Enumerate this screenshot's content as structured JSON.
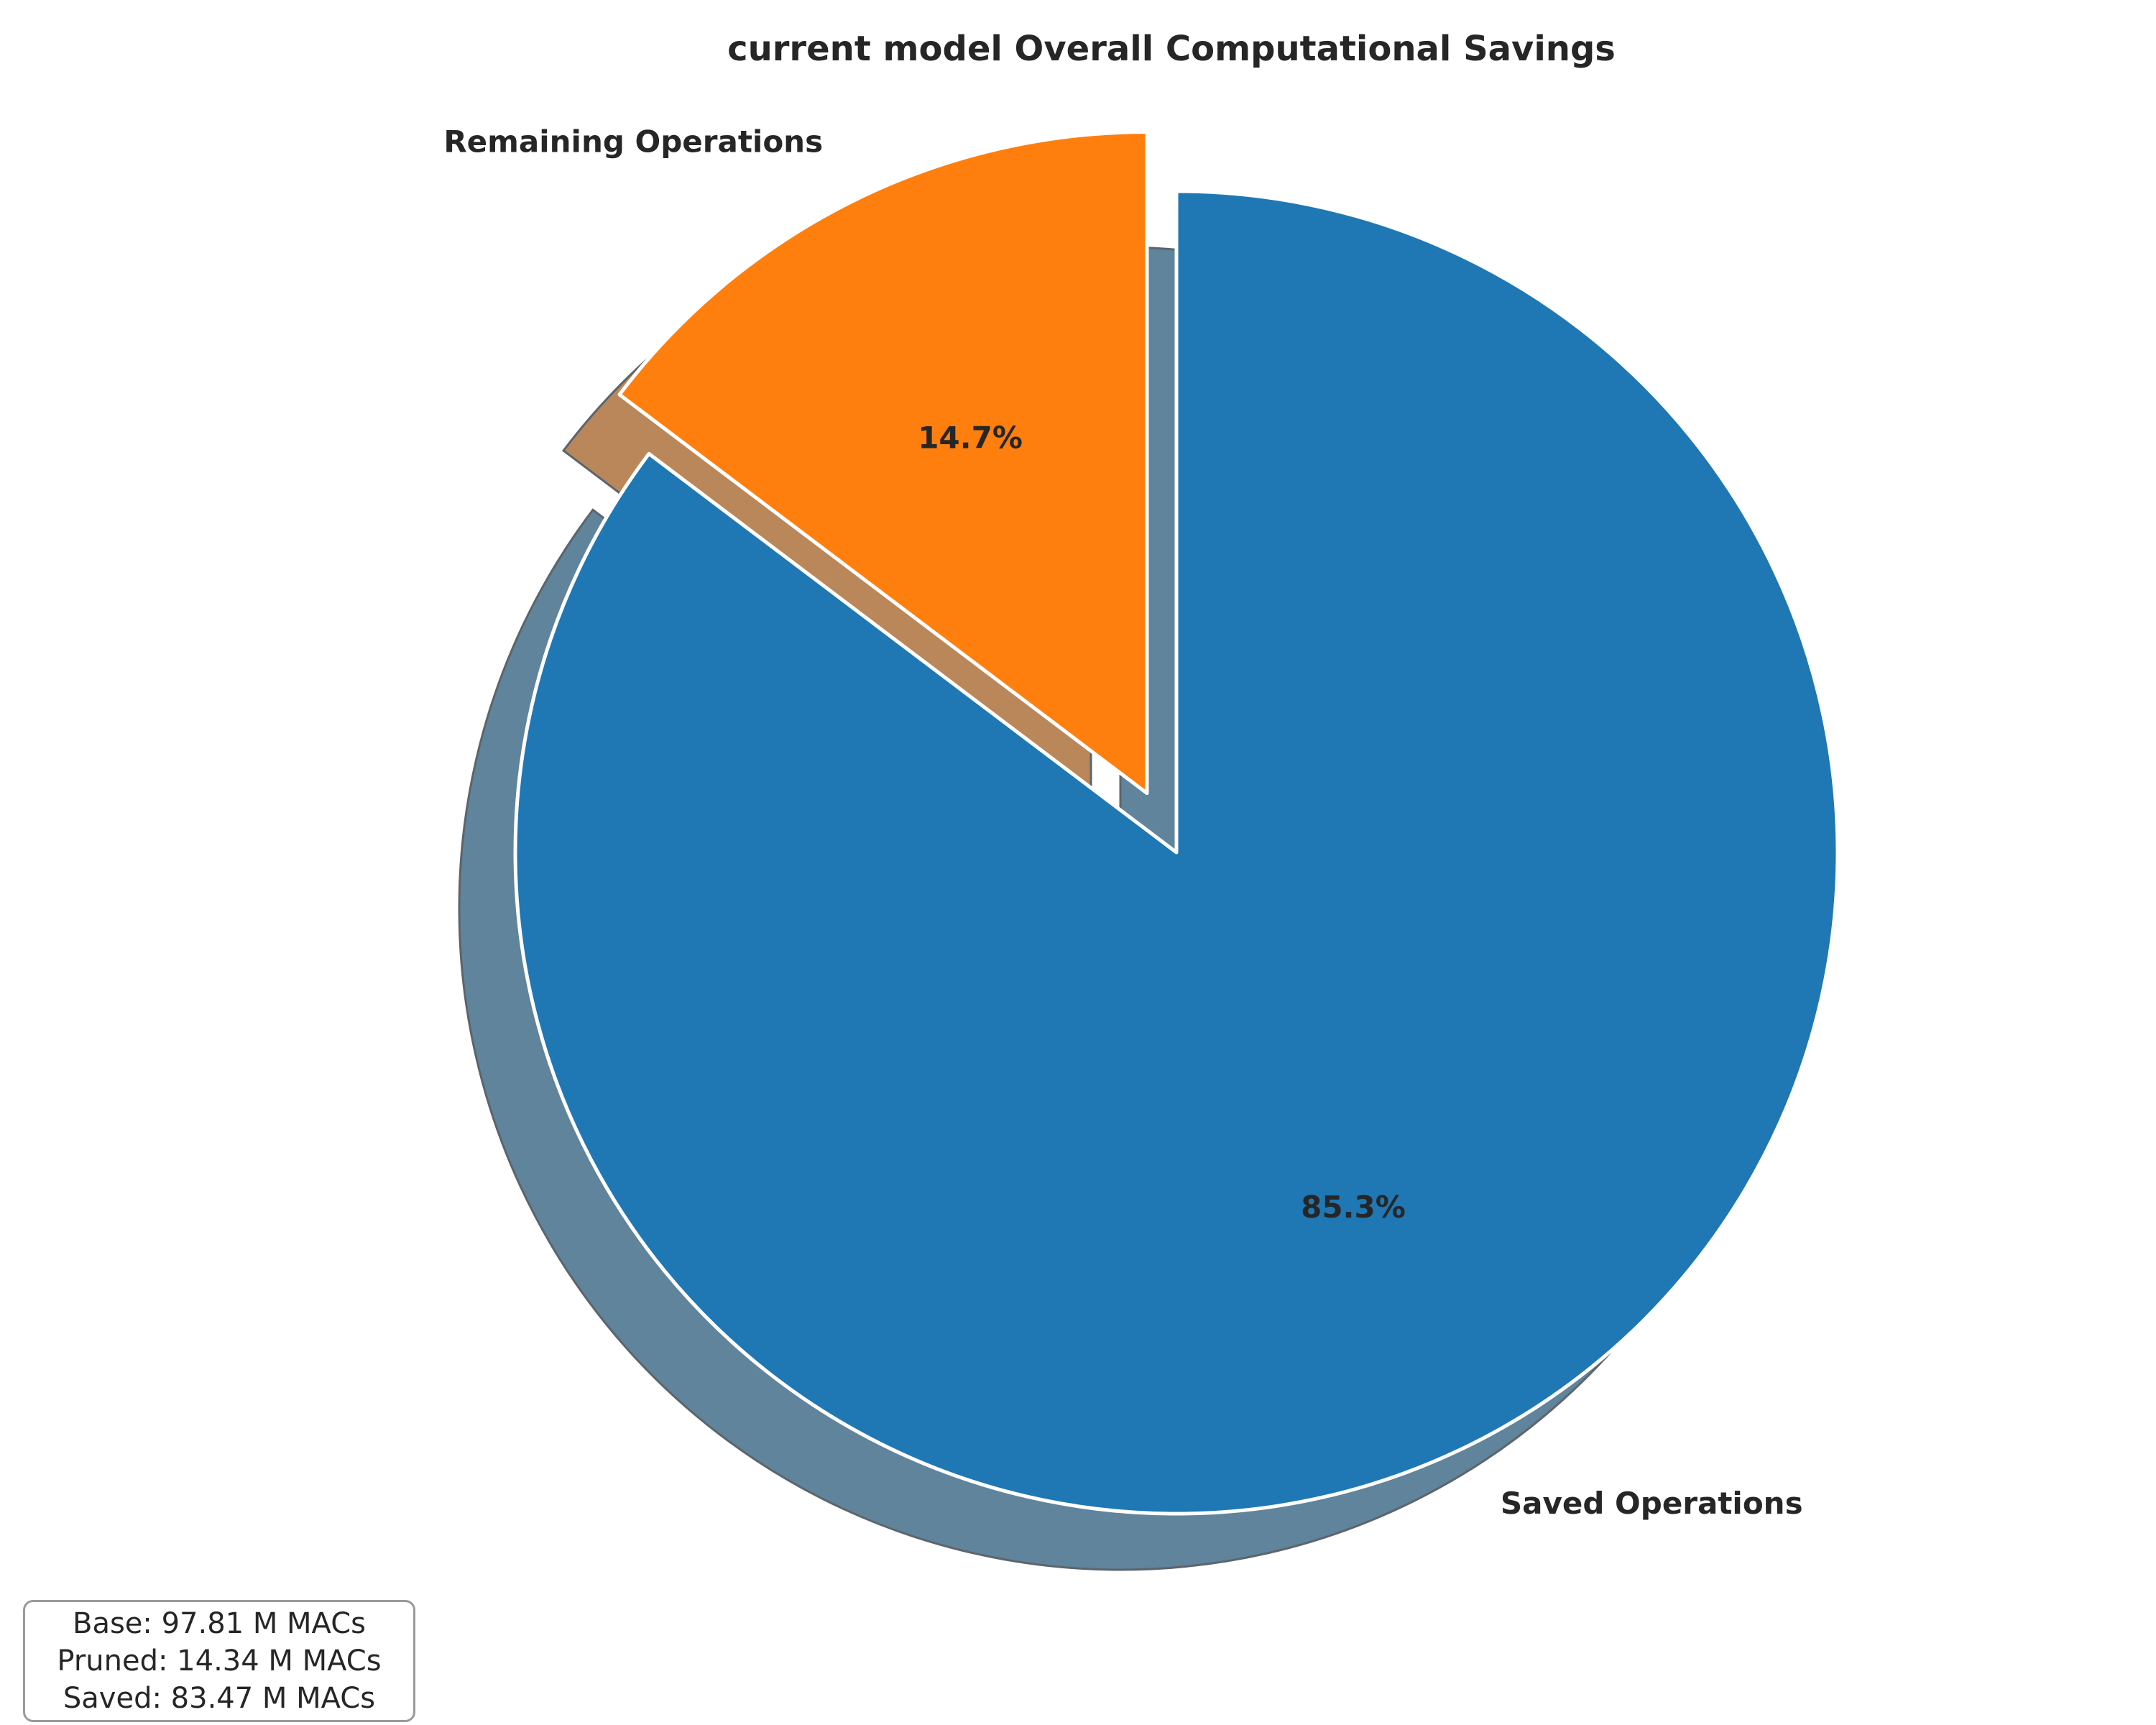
{
  "chart_data": {
    "type": "pie",
    "title": "current model Overall Computational Savings",
    "slices": [
      {
        "label": "Saved Operations",
        "value": 85.3,
        "pct_label": "85.3%",
        "color": "#1f77b4",
        "explode": false
      },
      {
        "label": "Remaining Operations",
        "value": 14.7,
        "pct_label": "14.7%",
        "color": "#ff7f0e",
        "explode": true
      }
    ],
    "start_angle_deg": 90,
    "direction": "clockwise-from-top",
    "shadow": true,
    "edge_color": "#ffffff",
    "legend": "none"
  },
  "stats_box": {
    "lines": [
      "Base: 97.81 M MACs",
      "Pruned: 14.34 M MACs",
      "Saved: 83.47 M MACs"
    ]
  }
}
